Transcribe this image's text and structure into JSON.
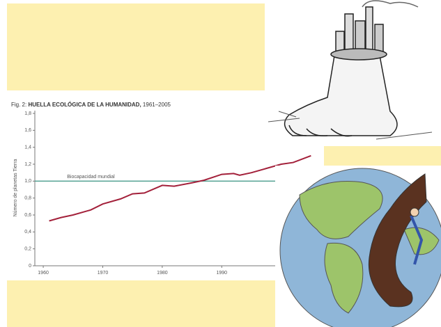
{
  "chart_data": {
    "type": "line",
    "title": {
      "figure": "Fig. 2:",
      "main": "HUELLA ECOLÓGICA DE LA HUMANIDAD,",
      "years": "1961–2005"
    },
    "y_label": "Número de planetas Tierra",
    "x": [
      1961,
      1963,
      1965,
      1968,
      1970,
      1973,
      1975,
      1977,
      1980,
      1982,
      1985,
      1987,
      1990,
      1992,
      1993,
      1995,
      1997,
      2000,
      2002,
      2005
    ],
    "values": [
      0.53,
      0.57,
      0.6,
      0.66,
      0.73,
      0.79,
      0.85,
      0.86,
      0.95,
      0.94,
      0.98,
      1.01,
      1.08,
      1.09,
      1.07,
      1.1,
      1.14,
      1.2,
      1.22,
      1.3
    ],
    "color": "#a3203a",
    "reference_line": {
      "label": "Biocapacidad mundial",
      "value": 1,
      "color": "#4a9c8c"
    },
    "xlim": [
      1958,
      2008
    ],
    "xticks": [
      1960,
      1970,
      1980,
      1990
    ],
    "ylim": [
      0,
      1.8
    ],
    "yticks": [
      0,
      {
        "value": 0.2,
        "label": "0,2"
      },
      {
        "value": 0.4,
        "label": "0,4"
      },
      {
        "value": 0.6,
        "label": "0,6"
      },
      {
        "value": 0.8,
        "label": "0,8"
      },
      {
        "value": 1,
        "label": "1,0"
      },
      {
        "value": 1.2,
        "label": "1,2"
      },
      {
        "value": 1.4,
        "label": "1,4"
      },
      {
        "value": 1.6,
        "label": "1,6"
      },
      {
        "value": 1.8,
        "label": "1,8"
      }
    ]
  }
}
